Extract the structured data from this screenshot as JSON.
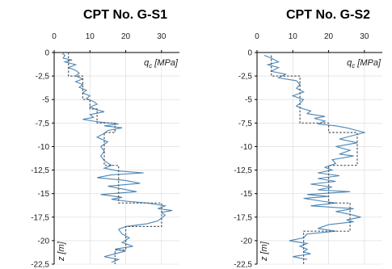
{
  "chart_data": [
    {
      "type": "line",
      "title": "CPT No. G-S1",
      "x_ticks": [
        "0",
        "10",
        "20",
        "30"
      ],
      "y_ticks": [
        "0",
        "-2,5",
        "-5",
        "-7,5",
        "-10",
        "-12,5",
        "-15",
        "-17,5",
        "-20",
        "-22,5"
      ],
      "x_label_main": "q",
      "x_label_sub": "c",
      "x_label_unit": " [MPa]",
      "y_label": "z [m]",
      "xlim": [
        0,
        35
      ],
      "ylim": [
        -22.5,
        0
      ],
      "grid": true,
      "series": [
        {
          "color": "#4a86b8",
          "line_style": "solid",
          "points": [
            [
              2,
              0
            ],
            [
              3,
              -0.3
            ],
            [
              2.5,
              -0.6
            ],
            [
              5,
              -0.8
            ],
            [
              3,
              -1
            ],
            [
              6,
              -1.3
            ],
            [
              4,
              -1.6
            ],
            [
              6,
              -1.9
            ],
            [
              7,
              -2.2
            ],
            [
              6,
              -2.5
            ],
            [
              8,
              -2.8
            ],
            [
              6,
              -3.1
            ],
            [
              8,
              -3.4
            ],
            [
              7,
              -3.7
            ],
            [
              9,
              -4
            ],
            [
              8,
              -4.3
            ],
            [
              10,
              -4.6
            ],
            [
              9,
              -4.9
            ],
            [
              11,
              -5.2
            ],
            [
              12,
              -5.5
            ],
            [
              10,
              -5.8
            ],
            [
              12,
              -6.1
            ],
            [
              14,
              -6.3
            ],
            [
              10,
              -6.6
            ],
            [
              11,
              -6.9
            ],
            [
              8,
              -7.1
            ],
            [
              11,
              -7.3
            ],
            [
              13,
              -7.4
            ],
            [
              18,
              -7.6
            ],
            [
              14,
              -7.8
            ],
            [
              19,
              -8
            ],
            [
              15,
              -8.3
            ],
            [
              14,
              -8.6
            ],
            [
              12,
              -9
            ],
            [
              15,
              -9.5
            ],
            [
              13,
              -10
            ],
            [
              14,
              -10.5
            ],
            [
              13,
              -11
            ],
            [
              14,
              -11.5
            ],
            [
              16,
              -12
            ],
            [
              14,
              -12.3
            ],
            [
              18,
              -12.6
            ],
            [
              25,
              -12.8
            ],
            [
              16,
              -13
            ],
            [
              12,
              -13.3
            ],
            [
              20,
              -13.6
            ],
            [
              24,
              -13.9
            ],
            [
              15,
              -14.2
            ],
            [
              19,
              -14.5
            ],
            [
              23,
              -14.8
            ],
            [
              13,
              -15.1
            ],
            [
              19,
              -15.4
            ],
            [
              16,
              -15.6
            ],
            [
              20,
              -15.8
            ],
            [
              26,
              -16
            ],
            [
              31,
              -16.3
            ],
            [
              29,
              -16.6
            ],
            [
              33,
              -16.8
            ],
            [
              30,
              -17
            ],
            [
              31,
              -17.3
            ],
            [
              30,
              -17.6
            ],
            [
              29,
              -17.9
            ],
            [
              26,
              -18.2
            ],
            [
              20,
              -18.5
            ],
            [
              18,
              -18.8
            ],
            [
              19,
              -19.3
            ],
            [
              21,
              -19.7
            ],
            [
              19,
              -20.2
            ],
            [
              22,
              -20.6
            ],
            [
              17,
              -20.9
            ],
            [
              20,
              -21.1
            ],
            [
              17,
              -21.4
            ],
            [
              14,
              -21.7
            ],
            [
              18,
              -22
            ],
            [
              16,
              -22.3
            ]
          ]
        },
        {
          "color": "#555555",
          "line_style": "dotted",
          "points": [
            [
              4,
              0
            ],
            [
              4,
              -2.5
            ],
            [
              8,
              -2.5
            ],
            [
              8,
              -5
            ],
            [
              10,
              -5
            ],
            [
              10,
              -6
            ],
            [
              12,
              -6
            ],
            [
              12,
              -7.5
            ],
            [
              17,
              -7.5
            ],
            [
              17,
              -8.5
            ],
            [
              14,
              -8.5
            ],
            [
              14,
              -12
            ],
            [
              18,
              -12
            ],
            [
              18,
              -16
            ],
            [
              30,
              -16
            ],
            [
              30,
              -18.5
            ],
            [
              20,
              -18.5
            ],
            [
              20,
              -21
            ],
            [
              17,
              -21
            ],
            [
              17,
              -22.5
            ]
          ]
        }
      ]
    },
    {
      "type": "line",
      "title": "CPT No. G-S2",
      "x_ticks": [
        "0",
        "10",
        "20",
        "30"
      ],
      "y_ticks": [
        "0",
        "-2,5",
        "-5",
        "-7,5",
        "-10",
        "-12,5",
        "-15",
        "-17,5",
        "-20",
        "-22,5"
      ],
      "x_label_main": "q",
      "x_label_sub": "c",
      "x_label_unit": " [MPa]",
      "y_label": "z [m]",
      "xlim": [
        0,
        35
      ],
      "ylim": [
        -22.5,
        0
      ],
      "grid": true,
      "series": [
        {
          "color": "#4a86b8",
          "line_style": "solid",
          "points": [
            [
              2,
              -0.3
            ],
            [
              4,
              -0.6
            ],
            [
              6,
              -1
            ],
            [
              3,
              -1.3
            ],
            [
              6,
              -1.6
            ],
            [
              4,
              -2
            ],
            [
              8,
              -2.3
            ],
            [
              6,
              -2.7
            ],
            [
              11,
              -3
            ],
            [
              12,
              -3.4
            ],
            [
              11,
              -3.8
            ],
            [
              13,
              -4.2
            ],
            [
              10,
              -4.6
            ],
            [
              13,
              -5
            ],
            [
              12,
              -5.4
            ],
            [
              11,
              -5.7
            ],
            [
              13,
              -6
            ],
            [
              15,
              -6.2
            ],
            [
              14,
              -6.5
            ],
            [
              19,
              -6.8
            ],
            [
              16,
              -7
            ],
            [
              19,
              -7.3
            ],
            [
              17,
              -7.6
            ],
            [
              22,
              -7.8
            ],
            [
              25,
              -8
            ],
            [
              27,
              -8.2
            ],
            [
              30,
              -8.5
            ],
            [
              27,
              -8.8
            ],
            [
              23,
              -9.2
            ],
            [
              28,
              -9.6
            ],
            [
              22,
              -10
            ],
            [
              26,
              -10.4
            ],
            [
              23,
              -10.8
            ],
            [
              27,
              -11
            ],
            [
              21,
              -11.4
            ],
            [
              22,
              -11.8
            ],
            [
              19,
              -12.2
            ],
            [
              21,
              -12.5
            ],
            [
              17,
              -12.8
            ],
            [
              23,
              -13.1
            ],
            [
              17,
              -13.4
            ],
            [
              22,
              -13.7
            ],
            [
              15,
              -14
            ],
            [
              21,
              -14.3
            ],
            [
              17,
              -14.6
            ],
            [
              26,
              -14.8
            ],
            [
              14,
              -15.1
            ],
            [
              20,
              -15.3
            ],
            [
              13,
              -15.5
            ],
            [
              18,
              -15.8
            ],
            [
              22,
              -16
            ],
            [
              15,
              -16.3
            ],
            [
              27,
              -16.6
            ],
            [
              22,
              -16.9
            ],
            [
              26,
              -17.2
            ],
            [
              29,
              -17.5
            ],
            [
              25,
              -17.8
            ],
            [
              27,
              -18
            ],
            [
              20,
              -18.3
            ],
            [
              17,
              -18.7
            ],
            [
              22,
              -19
            ],
            [
              14,
              -19.3
            ],
            [
              13,
              -19.7
            ],
            [
              9,
              -20
            ],
            [
              14,
              -20.3
            ],
            [
              12,
              -20.6
            ],
            [
              14,
              -20.9
            ],
            [
              13,
              -21.2
            ],
            [
              15,
              -21.4
            ],
            [
              10,
              -21.7
            ],
            [
              14,
              -22
            ]
          ]
        },
        {
          "color": "#555555",
          "line_style": "dotted",
          "points": [
            [
              4,
              -0.3
            ],
            [
              4,
              -2.5
            ],
            [
              12,
              -2.5
            ],
            [
              12,
              -7.5
            ],
            [
              20,
              -7.5
            ],
            [
              20,
              -8.5
            ],
            [
              28,
              -8.5
            ],
            [
              28,
              -12
            ],
            [
              20,
              -12
            ],
            [
              20,
              -16
            ],
            [
              26,
              -16
            ],
            [
              26,
              -19
            ],
            [
              13,
              -19
            ],
            [
              13,
              -22.5
            ]
          ]
        }
      ]
    }
  ]
}
